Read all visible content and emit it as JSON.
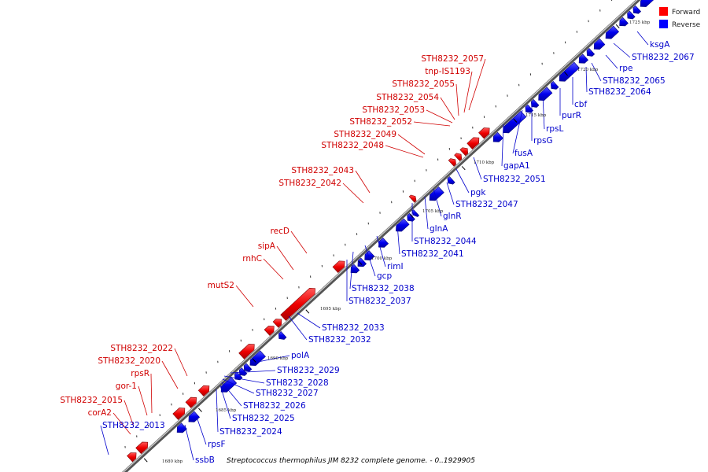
{
  "caption": "Streptococcus thermophilus JIM 8232 complete genome. - 0..1929905",
  "legend": {
    "forward": {
      "label": "Forward",
      "color": "#ff0000"
    },
    "reverse": {
      "label": "Reverse",
      "color": "#0000ff"
    }
  },
  "ticks": [
    "1680 kbp",
    "1685 kbp",
    "1690 kbp",
    "1695 kbp",
    "1700 kbp",
    "1705 kbp",
    "1710 kbp",
    "1715 kbp",
    "1720 kbp",
    "1725 kbp"
  ],
  "forward_labels": [
    "STH8232_2057",
    "tnp-IS1193",
    "STH8232_2055",
    "STH8232_2054",
    "STH8232_2053",
    "STH8232_2052",
    "STH8232_2049",
    "STH8232_2048",
    "STH8232_2043",
    "STH8232_2042",
    "recD",
    "sipA",
    "rnhC",
    "mutS2",
    "STH8232_2022",
    "STH8232_2020",
    "rpsR",
    "gor-1",
    "STH8232_2015",
    "corA2"
  ],
  "reverse_labels": [
    "ksgA",
    "STH8232_2067",
    "rpe",
    "STH8232_2065",
    "STH8232_2064",
    "cbf",
    "purR",
    "rpsL",
    "rpsG",
    "fusA",
    "gapA1",
    "STH8232_2051",
    "pgk",
    "STH8232_2047",
    "glnR",
    "glnA",
    "STH8232_2044",
    "STH8232_2041",
    "rimI",
    "gcp",
    "STH8232_2038",
    "STH8232_2037",
    "STH8232_2033",
    "STH8232_2032",
    "polA",
    "STH8232_2029",
    "STH8232_2028",
    "STH8232_2027",
    "STH8232_2026",
    "STH8232_2025",
    "STH8232_2024",
    "rpsF",
    "ssbB",
    "STH8232_2013"
  ]
}
